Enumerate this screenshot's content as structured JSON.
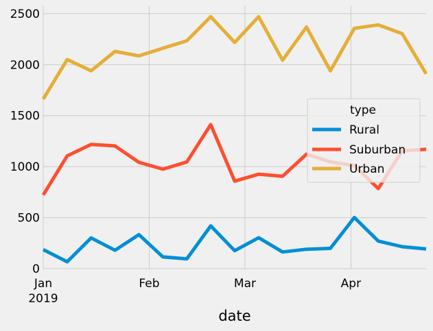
{
  "chart_data": {
    "type": "line",
    "xlabel": "date",
    "ylabel": "",
    "title": "",
    "ylim": [
      0,
      2580
    ],
    "xlim": [
      "2019-01-06",
      "2019-04-28"
    ],
    "grid": true,
    "legend": {
      "title": "type",
      "placement": "center-right"
    },
    "x": [
      "2019-01-06",
      "2019-01-13",
      "2019-01-20",
      "2019-01-27",
      "2019-02-03",
      "2019-02-10",
      "2019-02-17",
      "2019-02-24",
      "2019-03-03",
      "2019-03-10",
      "2019-03-17",
      "2019-03-24",
      "2019-03-31",
      "2019-04-07",
      "2019-04-14",
      "2019-04-21",
      "2019-04-28"
    ],
    "x_ticks": [
      {
        "date": "2019-01-06",
        "label": "Jan",
        "sublabel": "2019"
      },
      {
        "date": "2019-02-06",
        "label": "Feb",
        "sublabel": ""
      },
      {
        "date": "2019-03-06",
        "label": "Mar",
        "sublabel": ""
      },
      {
        "date": "2019-04-06",
        "label": "Apr",
        "sublabel": ""
      }
    ],
    "y_ticks": [
      0,
      500,
      1000,
      1500,
      2000,
      2500
    ],
    "series": [
      {
        "name": "Rural",
        "color": "#008fd5",
        "values": [
          187,
          67,
          301,
          180,
          333,
          115,
          96,
          419,
          176,
          303,
          163,
          190,
          199,
          501,
          270,
          215,
          193
        ]
      },
      {
        "name": "Suburban",
        "color": "#fc4f30",
        "values": [
          722,
          1105,
          1218,
          1203,
          1042,
          975,
          1046,
          1412,
          858,
          926,
          906,
          1122,
          1046,
          1011,
          785,
          1155,
          1170
        ]
      },
      {
        "name": "Urban",
        "color": "#e5ae38",
        "values": [
          1662,
          2050,
          1940,
          2130,
          2086,
          2161,
          2234,
          2470,
          2218,
          2470,
          2044,
          2369,
          1939,
          2356,
          2390,
          2304,
          1910
        ]
      }
    ]
  }
}
